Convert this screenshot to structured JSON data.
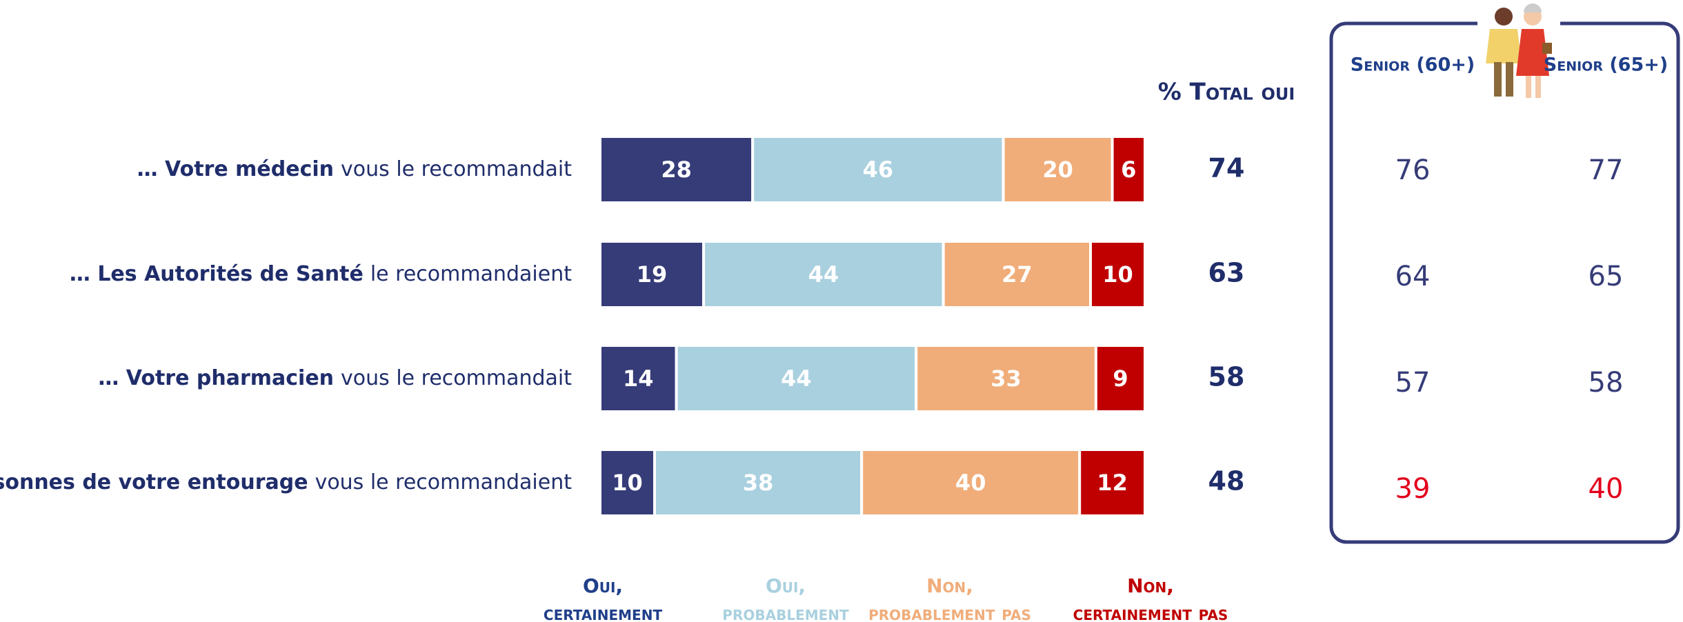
{
  "chart_data": {
    "type": "stacked-barh",
    "categories": [
      [
        "… Votre médecin",
        "vous le recommandait"
      ],
      [
        "… Les Autorités de Santé",
        "le recommandaient"
      ],
      [
        "… Votre pharmacien",
        "vous le recommandait"
      ],
      [
        "… Des personnes de votre entourage",
        "vous le recommandaient"
      ]
    ],
    "series": [
      {
        "name": "Oui,\ncertainement",
        "color": "#363c78",
        "legend_color": "#1f3f8a",
        "values": [
          28,
          19,
          14,
          10
        ]
      },
      {
        "name": "Oui,\nprobablement",
        "color": "#a9d0df",
        "legend_color": "#a9d0df",
        "values": [
          46,
          44,
          44,
          38
        ]
      },
      {
        "name": "Non,\nprobablement pas",
        "color": "#f0ad7a",
        "legend_color": "#f0ad7a",
        "values": [
          20,
          27,
          33,
          40
        ]
      },
      {
        "name": "Non,\ncertainement pas",
        "color": "#c00000",
        "legend_color": "#c00000",
        "values": [
          6,
          10,
          9,
          12
        ]
      }
    ],
    "xlim": [
      0,
      100
    ]
  },
  "total_oui": {
    "header": "% Total oui",
    "values": [
      74,
      63,
      58,
      48
    ]
  },
  "senior_columns": [
    {
      "header": "Senior (60+)",
      "values": [
        76,
        64,
        57,
        39
      ],
      "colors": [
        "#363c78",
        "#363c78",
        "#363c78",
        "#e3001b"
      ]
    },
    {
      "header": "Senior (65+)",
      "values": [
        77,
        65,
        58,
        40
      ],
      "colors": [
        "#363c78",
        "#363c78",
        "#363c78",
        "#e3001b"
      ]
    }
  ]
}
